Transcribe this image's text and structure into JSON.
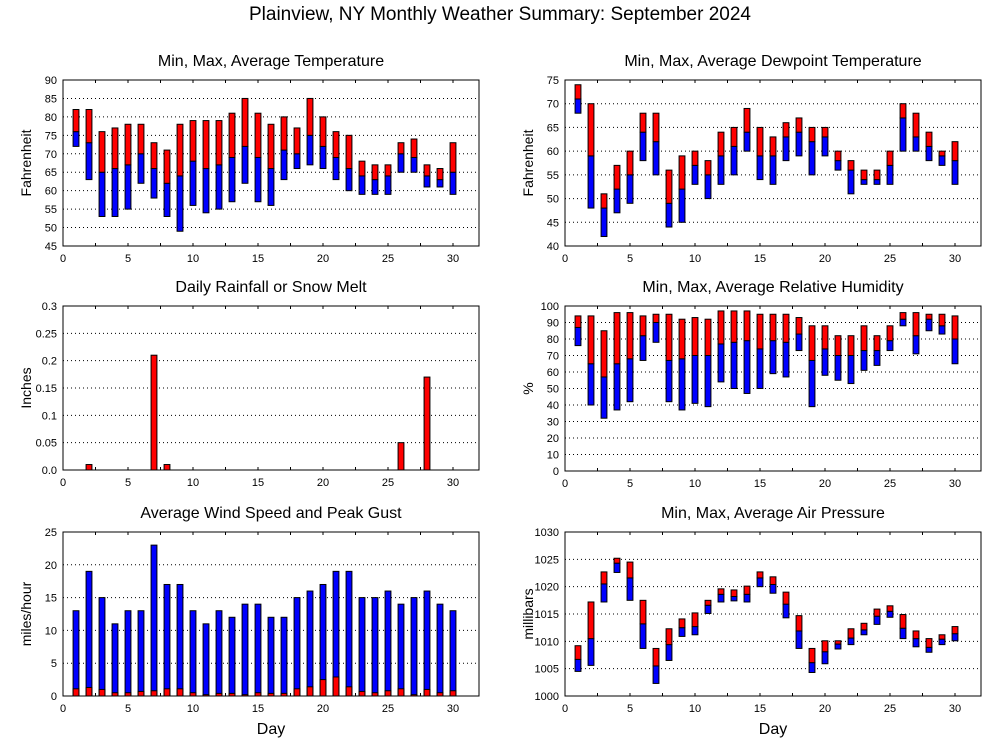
{
  "page": {
    "title": "Plainview, NY Monthly Weather Summary: September 2024"
  },
  "colors": {
    "upper": "#ff0000",
    "lower": "#0000ff",
    "outline": "#000000"
  },
  "chart_data": [
    {
      "id": "temperature",
      "type": "bar",
      "subtype": "floating-range (min-avg blue, avg-max red)",
      "title": "Min, Max, Average Temperature",
      "xlabel": "",
      "ylabel": "Fahrenheit",
      "xlim": [
        0,
        32
      ],
      "ylim": [
        45,
        90
      ],
      "yticks": [
        45,
        50,
        55,
        60,
        65,
        70,
        75,
        80,
        85,
        90
      ],
      "ytick_labels": [
        "45",
        "50",
        "55",
        "60",
        "65",
        "70",
        "75",
        "80",
        "85",
        "90"
      ],
      "xticks": [
        0,
        5,
        10,
        15,
        20,
        25,
        30
      ],
      "xtick_labels": [
        "0",
        "5",
        "10",
        "15",
        "20",
        "25",
        "30"
      ],
      "grid": true,
      "x": [
        1,
        2,
        3,
        4,
        5,
        6,
        7,
        8,
        9,
        10,
        11,
        12,
        13,
        14,
        15,
        16,
        17,
        18,
        19,
        20,
        21,
        22,
        23,
        24,
        25,
        26,
        27,
        28,
        29,
        30
      ],
      "series": [
        {
          "name": "Max",
          "values": [
            82,
            82,
            76,
            77,
            78,
            78,
            73,
            71,
            78,
            79,
            79,
            79,
            81,
            85,
            81,
            78,
            80,
            77,
            85,
            80,
            76,
            75,
            68,
            67,
            67,
            73,
            74,
            67,
            66,
            73
          ]
        },
        {
          "name": "Average",
          "values": [
            76,
            73,
            65,
            66,
            67,
            70,
            66,
            62,
            64,
            68,
            66,
            67,
            69,
            72,
            69,
            66,
            71,
            70,
            75,
            72,
            69,
            66,
            64,
            63,
            64,
            70,
            69,
            64,
            63,
            65
          ]
        },
        {
          "name": "Min",
          "values": [
            72,
            63,
            53,
            53,
            55,
            62,
            58,
            53,
            49,
            56,
            54,
            55,
            57,
            62,
            57,
            56,
            63,
            66,
            67,
            66,
            63,
            60,
            59,
            59,
            59,
            65,
            65,
            61,
            61,
            59
          ]
        }
      ]
    },
    {
      "id": "dewpoint",
      "type": "bar",
      "subtype": "floating-range (min-avg blue, avg-max red)",
      "title": "Min, Max, Average Dewpoint Temperature",
      "xlabel": "",
      "ylabel": "Fahrenheit",
      "xlim": [
        0,
        32
      ],
      "ylim": [
        40,
        75
      ],
      "yticks": [
        40,
        45,
        50,
        55,
        60,
        65,
        70,
        75
      ],
      "ytick_labels": [
        "40",
        "45",
        "50",
        "55",
        "60",
        "65",
        "70",
        "75"
      ],
      "xticks": [
        0,
        5,
        10,
        15,
        20,
        25,
        30
      ],
      "xtick_labels": [
        "0",
        "5",
        "10",
        "15",
        "20",
        "25",
        "30"
      ],
      "grid": true,
      "x": [
        1,
        2,
        3,
        4,
        5,
        6,
        7,
        8,
        9,
        10,
        11,
        12,
        13,
        14,
        15,
        16,
        17,
        18,
        19,
        20,
        21,
        22,
        23,
        24,
        25,
        26,
        27,
        28,
        29,
        30
      ],
      "series": [
        {
          "name": "Max",
          "values": [
            74,
            70,
            51,
            57,
            60,
            68,
            68,
            56,
            59,
            60,
            58,
            64,
            65,
            69,
            65,
            63,
            66,
            67,
            65,
            65,
            60,
            58,
            56,
            56,
            60,
            70,
            68,
            64,
            60,
            62
          ]
        },
        {
          "name": "Average",
          "values": [
            71,
            59,
            48,
            52,
            55,
            64,
            62,
            49,
            52,
            57,
            55,
            59,
            61,
            64,
            59,
            59,
            63,
            64,
            62,
            63,
            58,
            56,
            54,
            54,
            57,
            67,
            63,
            61,
            59,
            58
          ]
        },
        {
          "name": "Min",
          "values": [
            68,
            48,
            42,
            47,
            49,
            58,
            55,
            44,
            45,
            53,
            50,
            53,
            55,
            60,
            54,
            53,
            58,
            59,
            55,
            59,
            56,
            51,
            53,
            53,
            53,
            60,
            60,
            58,
            57,
            53
          ]
        }
      ]
    },
    {
      "id": "rainfall",
      "type": "bar",
      "title": "Daily Rainfall or Snow Melt",
      "xlabel": "",
      "ylabel": "Inches",
      "xlim": [
        0,
        32
      ],
      "ylim": [
        0,
        0.3
      ],
      "yticks": [
        0,
        0.05,
        0.1,
        0.15,
        0.2,
        0.25,
        0.3
      ],
      "ytick_labels": [
        "0.0",
        "0.05",
        "0.1",
        "0.15",
        "0.2",
        "0.25",
        "0.3"
      ],
      "xticks": [
        0,
        5,
        10,
        15,
        20,
        25,
        30
      ],
      "xtick_labels": [
        "0",
        "5",
        "10",
        "15",
        "20",
        "25",
        "30"
      ],
      "grid": true,
      "x": [
        1,
        2,
        3,
        4,
        5,
        6,
        7,
        8,
        9,
        10,
        11,
        12,
        13,
        14,
        15,
        16,
        17,
        18,
        19,
        20,
        21,
        22,
        23,
        24,
        25,
        26,
        27,
        28,
        29,
        30
      ],
      "series": [
        {
          "name": "Rainfall",
          "values": [
            0,
            0.01,
            0,
            0,
            0,
            0,
            0.21,
            0.01,
            0,
            0,
            0,
            0,
            0,
            0,
            0,
            0,
            0,
            0,
            0,
            0,
            0,
            0,
            0,
            0,
            0,
            0.05,
            0,
            0.17,
            0,
            0
          ]
        }
      ]
    },
    {
      "id": "humidity",
      "type": "bar",
      "subtype": "floating-range (min-avg blue, avg-max red)",
      "title": "Min, Max, Average Relative Humidity",
      "xlabel": "",
      "ylabel": "%",
      "xlim": [
        0,
        32
      ],
      "ylim": [
        0,
        100
      ],
      "yticks": [
        0,
        10,
        20,
        30,
        40,
        50,
        60,
        70,
        80,
        90,
        100
      ],
      "ytick_labels": [
        "0",
        "10",
        "20",
        "30",
        "40",
        "50",
        "60",
        "70",
        "80",
        "90",
        "100"
      ],
      "xticks": [
        0,
        5,
        10,
        15,
        20,
        25,
        30
      ],
      "xtick_labels": [
        "0",
        "5",
        "10",
        "15",
        "20",
        "25",
        "30"
      ],
      "grid": true,
      "x": [
        1,
        2,
        3,
        4,
        5,
        6,
        7,
        8,
        9,
        10,
        11,
        12,
        13,
        14,
        15,
        16,
        17,
        18,
        19,
        20,
        21,
        22,
        23,
        24,
        25,
        26,
        27,
        28,
        29,
        30
      ],
      "series": [
        {
          "name": "Max",
          "values": [
            94,
            94,
            85,
            96,
            96,
            94,
            95,
            95,
            92,
            93,
            92,
            97,
            97,
            97,
            95,
            95,
            95,
            93,
            88,
            88,
            82,
            82,
            88,
            82,
            88,
            96,
            96,
            95,
            95,
            94
          ]
        },
        {
          "name": "Average",
          "values": [
            87,
            65,
            57,
            65,
            68,
            82,
            90,
            67,
            68,
            70,
            70,
            77,
            78,
            79,
            74,
            79,
            78,
            83,
            67,
            74,
            70,
            70,
            73,
            73,
            79,
            92,
            82,
            92,
            88,
            80
          ]
        },
        {
          "name": "Min",
          "values": [
            76,
            40,
            32,
            37,
            42,
            67,
            78,
            42,
            37,
            41,
            39,
            54,
            50,
            47,
            50,
            59,
            57,
            73,
            39,
            58,
            55,
            53,
            61,
            64,
            73,
            88,
            71,
            85,
            83,
            65
          ]
        }
      ]
    },
    {
      "id": "wind",
      "type": "bar",
      "subtype": "overlaid (peak gust blue, average speed red)",
      "title": "Average Wind Speed and Peak Gust",
      "xlabel": "Day",
      "ylabel": "miles/hour",
      "xlim": [
        0,
        32
      ],
      "ylim": [
        0,
        25
      ],
      "yticks": [
        0,
        5,
        10,
        15,
        20,
        25
      ],
      "ytick_labels": [
        "0",
        "5",
        "10",
        "15",
        "20",
        "25"
      ],
      "xticks": [
        0,
        5,
        10,
        15,
        20,
        25,
        30
      ],
      "xtick_labels": [
        "0",
        "5",
        "10",
        "15",
        "20",
        "25",
        "30"
      ],
      "grid": true,
      "x": [
        1,
        2,
        3,
        4,
        5,
        6,
        7,
        8,
        9,
        10,
        11,
        12,
        13,
        14,
        15,
        16,
        17,
        18,
        19,
        20,
        21,
        22,
        23,
        24,
        25,
        26,
        27,
        28,
        29,
        30
      ],
      "series": [
        {
          "name": "Peak Gust",
          "values": [
            13,
            19,
            15,
            11,
            13,
            13,
            23,
            17,
            17,
            13,
            11,
            13,
            12,
            14,
            14,
            12,
            12,
            15,
            16,
            17,
            19,
            19,
            15,
            15,
            16,
            14,
            15,
            16,
            14,
            13
          ]
        },
        {
          "name": "Average Wind Speed",
          "values": [
            1.1,
            1.3,
            1.0,
            0.5,
            0.5,
            0.7,
            0.8,
            1.1,
            1.1,
            0.5,
            0.2,
            0.4,
            0.4,
            0.2,
            0.5,
            0.4,
            0.4,
            1.1,
            1.4,
            2.5,
            2.9,
            1.4,
            0.7,
            0.5,
            0.8,
            1.1,
            0.2,
            1.0,
            0.5,
            0.8
          ]
        }
      ]
    },
    {
      "id": "pressure",
      "type": "bar",
      "subtype": "floating-range (min-avg blue, avg-max red)",
      "title": "Min, Max, Average Air Pressure",
      "xlabel": "Day",
      "ylabel": "millibars",
      "xlim": [
        0,
        32
      ],
      "ylim": [
        1000,
        1030
      ],
      "yticks": [
        1000,
        1005,
        1010,
        1015,
        1020,
        1025,
        1030
      ],
      "ytick_labels": [
        "1000",
        "1005",
        "1010",
        "1015",
        "1020",
        "1025",
        "1030"
      ],
      "xticks": [
        0,
        5,
        10,
        15,
        20,
        25,
        30
      ],
      "xtick_labels": [
        "0",
        "5",
        "10",
        "15",
        "20",
        "25",
        "30"
      ],
      "grid": true,
      "x": [
        1,
        2,
        3,
        4,
        5,
        6,
        7,
        8,
        9,
        10,
        11,
        12,
        13,
        14,
        15,
        16,
        17,
        18,
        19,
        20,
        21,
        22,
        23,
        24,
        25,
        26,
        27,
        28,
        29,
        30
      ],
      "series": [
        {
          "name": "Max",
          "values": [
            1009.2,
            1017.2,
            1022.7,
            1025.2,
            1024.5,
            1017.5,
            1008.7,
            1012.3,
            1014.1,
            1015.2,
            1017.5,
            1019.6,
            1019.4,
            1020.1,
            1022.7,
            1021.8,
            1019.0,
            1014.7,
            1008.7,
            1010.1,
            1010.1,
            1012.3,
            1013.3,
            1015.9,
            1016.5,
            1014.9,
            1011.9,
            1010.5,
            1011.2,
            1012.7
          ]
        },
        {
          "name": "Average",
          "values": [
            1006.7,
            1010.5,
            1020.5,
            1024.3,
            1021.6,
            1013.2,
            1005.5,
            1009.4,
            1012.5,
            1012.7,
            1016.6,
            1018.6,
            1018.2,
            1018.6,
            1021.6,
            1020.4,
            1016.8,
            1011.9,
            1006.1,
            1008.1,
            1009.5,
            1010.6,
            1012.1,
            1014.6,
            1015.5,
            1012.4,
            1010.5,
            1008.9,
            1010.4,
            1011.4
          ]
        },
        {
          "name": "Min",
          "values": [
            1004.5,
            1005.6,
            1017.2,
            1022.6,
            1017.5,
            1008.7,
            1002.3,
            1006.5,
            1010.9,
            1011.2,
            1015.1,
            1017.2,
            1017.4,
            1017.2,
            1020.0,
            1018.8,
            1014.3,
            1008.7,
            1004.3,
            1005.9,
            1008.6,
            1009.4,
            1011.2,
            1013.1,
            1014.4,
            1010.5,
            1009.0,
            1008.0,
            1009.4,
            1010.1
          ]
        }
      ]
    }
  ]
}
